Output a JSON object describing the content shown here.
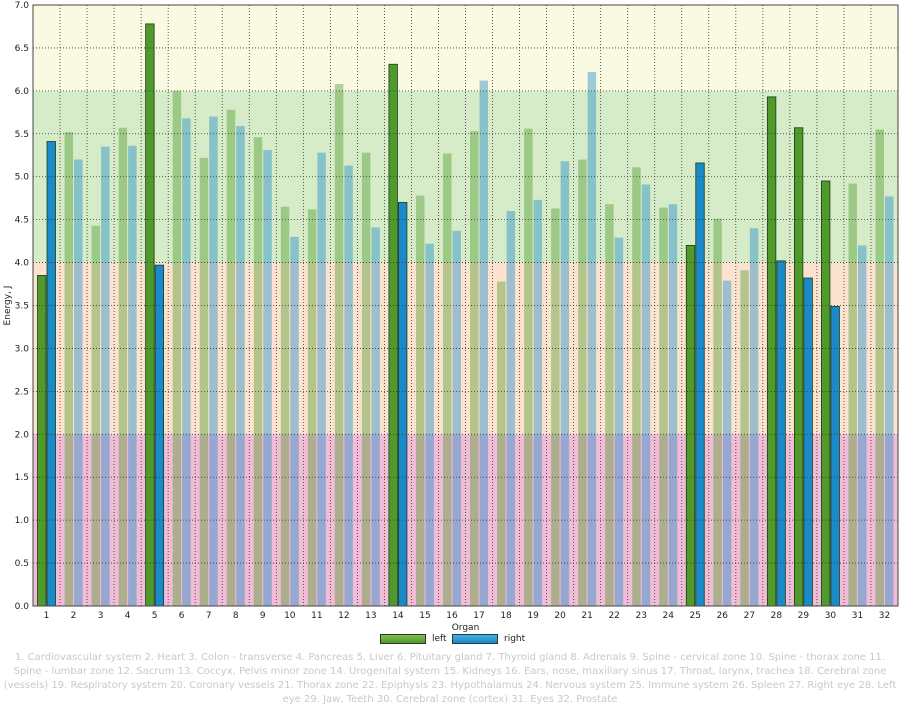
{
  "chart_data": {
    "type": "bar",
    "title": "",
    "xlabel": "Organ",
    "ylabel": "Energy, J",
    "ylim": [
      0,
      7
    ],
    "ytick_step": 0.5,
    "grid": true,
    "legend_position": "bottom",
    "categories": [
      "1",
      "2",
      "3",
      "4",
      "5",
      "6",
      "7",
      "8",
      "9",
      "10",
      "11",
      "12",
      "13",
      "14",
      "15",
      "16",
      "17",
      "18",
      "19",
      "20",
      "21",
      "22",
      "23",
      "24",
      "25",
      "26",
      "27",
      "28",
      "29",
      "30",
      "31",
      "32"
    ],
    "series": [
      {
        "name": "left",
        "color": "#4f9a2a",
        "values": [
          3.85,
          5.52,
          4.43,
          5.57,
          6.78,
          6.0,
          5.22,
          5.78,
          5.46,
          4.65,
          4.62,
          6.08,
          5.28,
          6.31,
          4.78,
          5.27,
          5.53,
          3.78,
          5.56,
          4.63,
          5.2,
          4.68,
          5.11,
          4.64,
          4.2,
          4.51,
          3.91,
          5.93,
          5.57,
          4.95,
          4.92,
          5.55
        ]
      },
      {
        "name": "right",
        "color": "#1a8ac8",
        "values": [
          5.41,
          5.2,
          5.35,
          5.36,
          3.97,
          5.68,
          5.7,
          5.59,
          5.31,
          4.3,
          5.28,
          5.13,
          4.41,
          4.7,
          4.22,
          4.37,
          6.12,
          4.6,
          4.73,
          5.18,
          6.22,
          4.29,
          4.91,
          4.68,
          5.16,
          3.79,
          4.4,
          4.02,
          3.82,
          3.49,
          4.2,
          4.77
        ]
      }
    ],
    "highlighted_categories": [
      "1",
      "5",
      "14",
      "25",
      "28",
      "29",
      "30"
    ],
    "zones": [
      {
        "from": 0,
        "to": 2,
        "color": "#f0bcd6"
      },
      {
        "from": 2,
        "to": 4,
        "color": "#fbe3cf"
      },
      {
        "from": 4,
        "to": 6,
        "color": "#d6ebc8"
      },
      {
        "from": 6,
        "to": 7,
        "color": "#fafae2"
      }
    ],
    "legend": [
      "left",
      "right"
    ],
    "caption": "1. Cardiovascular system  2. Heart  3. Colon - transverse  4. Pancreas  5. Liver  6. Pituitary gland  7. Thyroid gland  8. Adrenals  9. Spine - cervical zone  10. Spine - thorax zone  11. Spine - lumbar zone  12. Sacrum  13. Coccyx, Pelvis minor zone  14. Urogenital system  15. Kidneys  16. Ears, nose, maxillary sinus  17. Throat, larynx, trachea  18. Cerebral zone (vessels)  19. Respiratory system  20. Coronary vessels  21. Thorax zone  22. Epiphysis  23. Hypothalamus  24. Nervous system  25. Immune system  26. Spleen  27. Right eye  28. Left eye  29. Jaw, Teeth  30. Cerebral zone (cortex)  31. Eyes  32. Prostate"
  }
}
